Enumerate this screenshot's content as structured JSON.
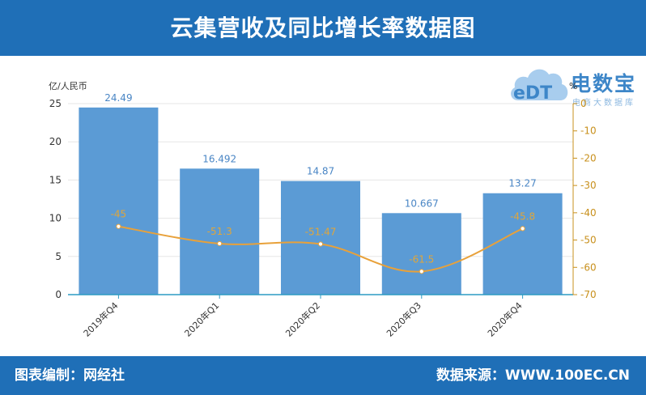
{
  "header": {
    "title": "云集营收及同比增长率数据图"
  },
  "footer": {
    "left": "图表编制：网经社",
    "right": "数据来源：WWW.100EC.CN"
  },
  "logo": {
    "name": "电数宝",
    "mark": "eDT",
    "sub": "电商大数据库"
  },
  "colors": {
    "header": "#1f6fb7",
    "bar": "#5b9bd5",
    "line": "#e8a13a",
    "right_axis": "#c8901c"
  },
  "chart_data": {
    "type": "bar",
    "categories": [
      "2019年Q4",
      "2020年Q1",
      "2020年Q2",
      "2020年Q3",
      "2020年Q4"
    ],
    "series": [
      {
        "values": [
          24.49,
          16.492,
          14.87,
          10.667,
          13.27
        ],
        "axis": "left",
        "kind": "bar"
      },
      {
        "values": [
          -45,
          -51.3,
          -51.47,
          -61.5,
          -45.8
        ],
        "axis": "right",
        "kind": "line"
      }
    ],
    "bar_labels": [
      "24.49",
      "16.492",
      "14.87",
      "10.667",
      "13.27"
    ],
    "line_labels": [
      "-45",
      "-51.3",
      "-51.47",
      "-61.5",
      "-45.8"
    ],
    "ylabel": "亿/人民币",
    "ylabel_right": "%",
    "ylim": [
      0,
      25
    ],
    "yticks": [
      0,
      5,
      10,
      15,
      20,
      25
    ],
    "ylim_right": [
      -70,
      0
    ],
    "yticks_right": [
      0,
      -10,
      -20,
      -30,
      -40,
      -50,
      -60,
      -70
    ],
    "grid": true,
    "legend": "none"
  }
}
